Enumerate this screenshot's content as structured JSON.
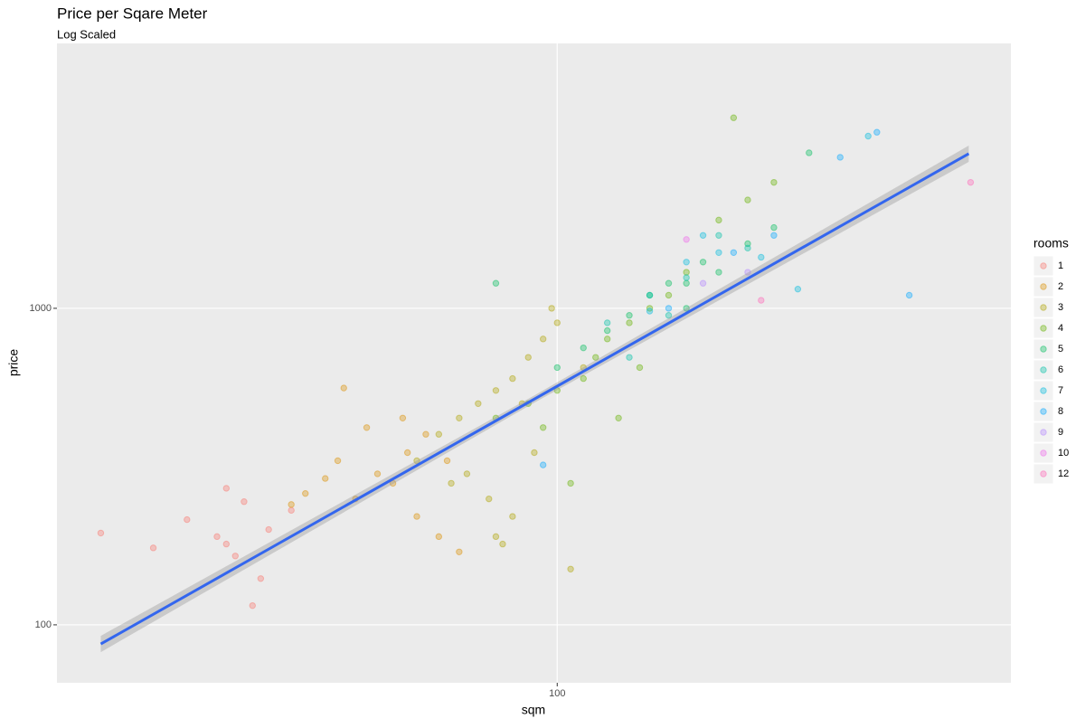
{
  "chart_data": {
    "type": "scatter",
    "title": "Price per Sqare Meter",
    "subtitle": "Log Scaled",
    "x_label": "sqm",
    "y_label": "price",
    "legend_title": "rooms",
    "log_x": true,
    "log_y": true,
    "grid": true,
    "legend": "right",
    "xlim": [
      16.2,
      521
    ],
    "ylim": [
      65.6,
      6870
    ],
    "xticks": [
      100
    ],
    "yticks": [
      100,
      1000
    ],
    "trend": {
      "color": "#3366ee",
      "x": [
        19,
        447
      ],
      "y": [
        87,
        3080
      ]
    },
    "series": [
      {
        "name": "1",
        "color": "#F8766D",
        "x": [
          19,
          23,
          26,
          29,
          30,
          31,
          32,
          33,
          35,
          38,
          34,
          30
        ],
        "y": [
          195,
          175,
          215,
          190,
          180,
          165,
          245,
          115,
          200,
          230,
          140,
          270
        ]
      },
      {
        "name": "2",
        "color": "#DB8E00",
        "x": [
          40,
          45,
          50,
          52,
          55,
          58,
          60,
          48,
          43,
          62,
          65,
          70,
          38,
          57,
          46,
          67
        ],
        "y": [
          260,
          330,
          420,
          300,
          280,
          350,
          220,
          250,
          290,
          400,
          190,
          170,
          240,
          450,
          560,
          330
        ]
      },
      {
        "name": "3",
        "color": "#AEA200",
        "x": [
          60,
          65,
          70,
          75,
          80,
          85,
          90,
          95,
          100,
          72,
          78,
          85,
          92,
          105,
          88,
          68,
          110,
          80,
          98,
          82
        ],
        "y": [
          330,
          400,
          450,
          500,
          550,
          600,
          700,
          800,
          900,
          300,
          250,
          220,
          350,
          150,
          500,
          280,
          650,
          190,
          1000,
          180
        ]
      },
      {
        "name": "4",
        "color": "#64B200",
        "x": [
          80,
          90,
          95,
          100,
          110,
          115,
          120,
          130,
          140,
          150,
          125,
          105,
          135,
          160,
          180,
          200,
          190,
          220
        ],
        "y": [
          450,
          500,
          420,
          550,
          600,
          700,
          800,
          900,
          1000,
          1100,
          450,
          280,
          650,
          1300,
          1900,
          2200,
          4000,
          2500
        ]
      },
      {
        "name": "5",
        "color": "#00BD5C",
        "x": [
          100,
          110,
          120,
          130,
          140,
          150,
          160,
          170,
          180,
          200,
          80,
          220,
          250,
          160
        ],
        "y": [
          650,
          750,
          850,
          950,
          1100,
          1200,
          1000,
          1400,
          1300,
          1600,
          1200,
          1800,
          3100,
          1200
        ]
      },
      {
        "name": "6",
        "color": "#00C1A7",
        "x": [
          120,
          140,
          150,
          160,
          180,
          200,
          130
        ],
        "y": [
          900,
          1100,
          950,
          1250,
          1700,
          1550,
          700
        ]
      },
      {
        "name": "7",
        "color": "#00BADE",
        "x": [
          140,
          160,
          180,
          210,
          240,
          310,
          170
        ],
        "y": [
          980,
          1400,
          1500,
          1450,
          1150,
          3500,
          1700
        ]
      },
      {
        "name": "8",
        "color": "#00A6FF",
        "x": [
          150,
          190,
          280,
          320,
          360,
          95,
          220
        ],
        "y": [
          1000,
          1500,
          3000,
          3600,
          1100,
          320,
          1700
        ]
      },
      {
        "name": "9",
        "color": "#B385FF",
        "x": [
          170,
          200
        ],
        "y": [
          1200,
          1300
        ]
      },
      {
        "name": "10",
        "color": "#EF67EB",
        "x": [
          160
        ],
        "y": [
          1650
        ]
      },
      {
        "name": "12",
        "color": "#FF63B6",
        "x": [
          210,
          450
        ],
        "y": [
          1060,
          2500
        ]
      }
    ]
  }
}
